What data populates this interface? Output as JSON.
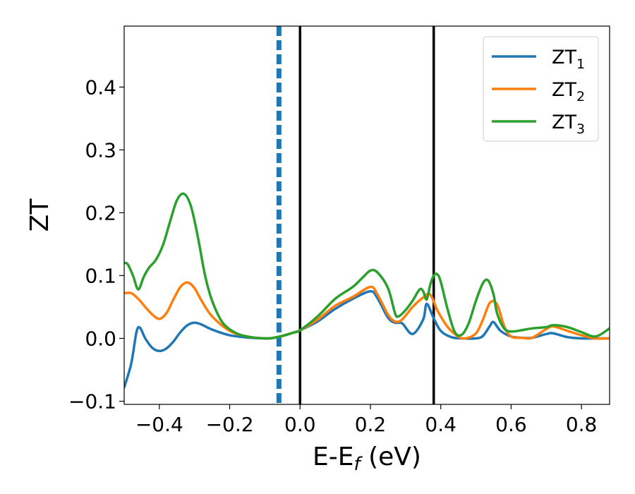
{
  "chart_data": {
    "type": "line",
    "xlabel": "E-E",
    "xlabel_sub": "f",
    "xlabel_unit": " (eV)",
    "ylabel": "ZT",
    "xlim": [
      -0.5,
      0.88
    ],
    "ylim": [
      -0.105,
      0.497
    ],
    "xticks": [
      -0.4,
      -0.2,
      0.0,
      0.2,
      0.4,
      0.6,
      0.8
    ],
    "xtick_labels": [
      "−0.4",
      "−0.2",
      "0.0",
      "0.2",
      "0.4",
      "0.6",
      "0.8"
    ],
    "yticks": [
      -0.1,
      0.0,
      0.1,
      0.2,
      0.3,
      0.4
    ],
    "ytick_labels": [
      "−0.1",
      "0.0",
      "0.1",
      "0.2",
      "0.3",
      "0.4"
    ],
    "grid": false,
    "legend_position": "top-right",
    "vertical_lines": [
      {
        "x": -0.06,
        "style": "dashed",
        "color": "#1f77b4"
      },
      {
        "x": 0.0,
        "style": "solid",
        "color": "#000000"
      },
      {
        "x": 0.38,
        "style": "solid",
        "color": "#000000"
      }
    ],
    "series": [
      {
        "name": "ZT",
        "name_sub": "1",
        "color": "#1f77b4",
        "x": [
          -0.5,
          -0.48,
          -0.465,
          -0.455,
          -0.44,
          -0.42,
          -0.4,
          -0.38,
          -0.36,
          -0.34,
          -0.32,
          -0.3,
          -0.28,
          -0.25,
          -0.2,
          -0.15,
          -0.1,
          -0.08,
          -0.05,
          -0.02,
          0.0,
          0.05,
          0.1,
          0.15,
          0.2,
          0.22,
          0.25,
          0.27,
          0.29,
          0.32,
          0.35,
          0.36,
          0.38,
          0.4,
          0.43,
          0.46,
          0.5,
          0.52,
          0.54,
          0.55,
          0.57,
          0.6,
          0.63,
          0.66,
          0.7,
          0.72,
          0.76,
          0.8,
          0.84,
          0.88
        ],
        "y": [
          -0.078,
          -0.04,
          0.01,
          0.017,
          0.0,
          -0.015,
          -0.02,
          -0.016,
          -0.005,
          0.01,
          0.021,
          0.025,
          0.022,
          0.014,
          0.005,
          0.0015,
          0.0,
          0.0005,
          0.004,
          0.009,
          0.013,
          0.027,
          0.047,
          0.063,
          0.075,
          0.064,
          0.033,
          0.025,
          0.024,
          0.007,
          0.03,
          0.055,
          0.032,
          0.012,
          0.002,
          0.0,
          0.0,
          0.004,
          0.02,
          0.026,
          0.012,
          0.003,
          0.001,
          0.001,
          0.007,
          0.008,
          0.002,
          0.0,
          0.0,
          0.0
        ]
      },
      {
        "name": "ZT",
        "name_sub": "2",
        "color": "#ff7f0e",
        "x": [
          -0.5,
          -0.48,
          -0.46,
          -0.44,
          -0.42,
          -0.4,
          -0.38,
          -0.36,
          -0.34,
          -0.32,
          -0.3,
          -0.28,
          -0.25,
          -0.2,
          -0.15,
          -0.1,
          -0.08,
          -0.05,
          -0.02,
          0.0,
          0.05,
          0.1,
          0.15,
          0.2,
          0.22,
          0.25,
          0.27,
          0.29,
          0.32,
          0.35,
          0.37,
          0.39,
          0.42,
          0.45,
          0.47,
          0.5,
          0.52,
          0.54,
          0.56,
          0.58,
          0.6,
          0.63,
          0.66,
          0.7,
          0.72,
          0.76,
          0.8,
          0.84,
          0.88
        ],
        "y": [
          0.072,
          0.072,
          0.063,
          0.05,
          0.038,
          0.031,
          0.04,
          0.062,
          0.082,
          0.089,
          0.08,
          0.06,
          0.035,
          0.012,
          0.003,
          0.0,
          0.0005,
          0.004,
          0.009,
          0.013,
          0.03,
          0.052,
          0.066,
          0.082,
          0.07,
          0.038,
          0.027,
          0.03,
          0.05,
          0.065,
          0.07,
          0.045,
          0.018,
          0.003,
          0.0,
          0.008,
          0.03,
          0.057,
          0.054,
          0.02,
          0.003,
          0.001,
          0.001,
          0.015,
          0.019,
          0.012,
          0.005,
          0.0,
          0.0
        ]
      },
      {
        "name": "ZT",
        "name_sub": "3",
        "color": "#2ca02c",
        "x": [
          -0.5,
          -0.49,
          -0.475,
          -0.46,
          -0.445,
          -0.43,
          -0.41,
          -0.39,
          -0.37,
          -0.35,
          -0.33,
          -0.31,
          -0.29,
          -0.27,
          -0.25,
          -0.22,
          -0.18,
          -0.14,
          -0.1,
          -0.08,
          -0.05,
          -0.02,
          0.0,
          0.05,
          0.1,
          0.15,
          0.18,
          0.2,
          0.22,
          0.25,
          0.27,
          0.28,
          0.3,
          0.32,
          0.34,
          0.35,
          0.36,
          0.37,
          0.38,
          0.39,
          0.4,
          0.42,
          0.44,
          0.46,
          0.48,
          0.5,
          0.52,
          0.535,
          0.55,
          0.56,
          0.58,
          0.6,
          0.63,
          0.66,
          0.7,
          0.72,
          0.76,
          0.8,
          0.84,
          0.88
        ],
        "y": [
          0.12,
          0.118,
          0.1,
          0.078,
          0.097,
          0.112,
          0.125,
          0.148,
          0.185,
          0.22,
          0.23,
          0.21,
          0.16,
          0.1,
          0.06,
          0.025,
          0.008,
          0.002,
          0.0,
          0.0005,
          0.004,
          0.009,
          0.013,
          0.035,
          0.063,
          0.082,
          0.098,
          0.108,
          0.105,
          0.08,
          0.04,
          0.035,
          0.045,
          0.06,
          0.078,
          0.075,
          0.062,
          0.085,
          0.1,
          0.102,
          0.09,
          0.045,
          0.01,
          0.006,
          0.025,
          0.06,
          0.088,
          0.092,
          0.07,
          0.04,
          0.016,
          0.011,
          0.013,
          0.016,
          0.018,
          0.021,
          0.018,
          0.01,
          0.003,
          0.016
        ]
      }
    ]
  }
}
